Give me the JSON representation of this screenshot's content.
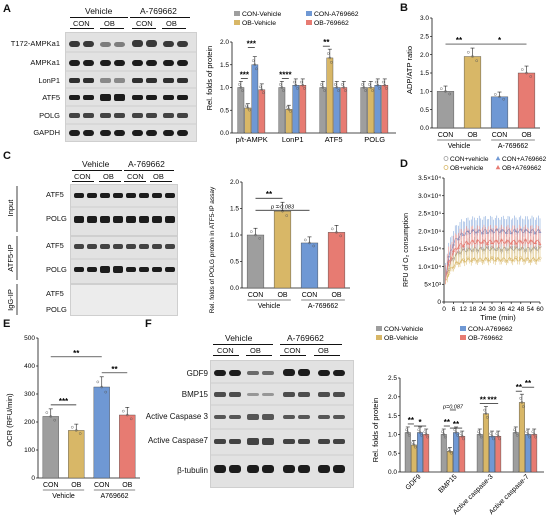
{
  "colors": {
    "con_vehicle": "#9e9e9e",
    "ob_vehicle": "#d8b767",
    "con_a769662": "#6f98d4",
    "ob_a769662": "#e77b72"
  },
  "panel_a": {
    "label": "A",
    "groups": [
      "Vehicle",
      "A-769662"
    ],
    "subgroups": [
      "CON",
      "OB",
      "CON",
      "OB"
    ],
    "blot_rows": [
      "T172-AMPKa1",
      "AMPKa1",
      "LonP1",
      "ATF5",
      "POLG",
      "GAPDH"
    ],
    "chart": {
      "ylabel": "Rel. folds of protein",
      "legend": [
        "CON-Vehicle",
        "CON-A769662",
        "OB-Vehicle",
        "OB-769662"
      ],
      "sig": [
        "***",
        "***",
        "****",
        "**"
      ]
    }
  },
  "panel_b": {
    "label": "B",
    "sig": [
      "**",
      "*"
    ],
    "subgroups": [
      "CON",
      "OB",
      "CON",
      "OB"
    ],
    "groups": [
      "Vehicle",
      "A-769662"
    ],
    "ylabel": "ADP/ATP ratio"
  },
  "panel_c": {
    "label": "C",
    "groups": [
      "Vehicle",
      "A-769662"
    ],
    "subgroups": [
      "CON",
      "OB",
      "CON",
      "OB"
    ],
    "sections": [
      "Input",
      "ATF5-IP",
      "IgG-IP"
    ],
    "blot_rows": [
      "ATF5",
      "POLG",
      "ATF5",
      "POLG",
      "ATF5",
      "POLG"
    ],
    "chart": {
      "ylabel": "Rel. folds of POLG protein in ATF5-IP assay",
      "ptext": "p = 0.083",
      "sig": [
        "**"
      ]
    }
  },
  "panel_d": {
    "label": "D",
    "legend": [
      "CON+vehicle",
      "OB+vehicle",
      "CON+A769662",
      "OB+A769662"
    ],
    "ylabel": "RFU of O₂ consumption",
    "xlabel": "Time (min)"
  },
  "panel_e": {
    "label": "E",
    "ylabel": "OCR (RFU/min)",
    "sig": [
      "***",
      "**",
      "**"
    ],
    "subgroups": [
      "CON",
      "OB",
      "CON",
      "OB"
    ],
    "groups": [
      "Vehicle",
      "A769662"
    ]
  },
  "panel_f": {
    "label": "F",
    "groups": [
      "Vehicle",
      "A-769662"
    ],
    "subgroups": [
      "CON",
      "OB",
      "CON",
      "OB"
    ],
    "blot_rows": [
      "GDF9",
      "BMP15",
      "Active Caspase 3",
      "Active Caspase7",
      "β-tubulin"
    ],
    "chart": {
      "ylabel": "Rel. folds of protein",
      "legend": [
        "CON-Vehicle",
        "CON-A769662",
        "OB-Vehicle",
        "OB-769662"
      ],
      "ptext": "p=0.087",
      "sig": [
        "**",
        "*",
        "**",
        "**",
        "**",
        "***",
        "**",
        "**"
      ]
    }
  },
  "chart_data": [
    {
      "type": "bar",
      "panel": "A",
      "categories": [
        "p/t-AMPK",
        "LonP1",
        "ATF5",
        "POLG"
      ],
      "ylim": [
        0,
        2.0
      ],
      "yticks": [
        0,
        0.5,
        1.0,
        1.5,
        2.0
      ],
      "series": [
        {
          "name": "CON-Vehicle",
          "values": [
            1.0,
            1.0,
            1.0,
            1.0
          ]
        },
        {
          "name": "OB-Vehicle",
          "values": [
            0.55,
            0.52,
            1.65,
            1.0
          ]
        },
        {
          "name": "CON-A769662",
          "values": [
            1.5,
            1.05,
            1.0,
            1.05
          ]
        },
        {
          "name": "OB-769662",
          "values": [
            0.95,
            1.05,
            1.0,
            1.05
          ]
        }
      ]
    },
    {
      "type": "bar",
      "panel": "B",
      "categories": [
        "CON",
        "OB",
        "CON",
        "OB"
      ],
      "ylim": [
        0,
        3.0
      ],
      "yticks": [
        0,
        0.5,
        1.0,
        1.5,
        2.0,
        2.5,
        3.0
      ],
      "values": [
        1.0,
        1.95,
        0.85,
        1.5
      ]
    },
    {
      "type": "bar",
      "panel": "C",
      "categories": [
        "CON",
        "OB",
        "CON",
        "OB"
      ],
      "ylim": [
        0,
        2.0
      ],
      "yticks": [
        0,
        0.5,
        1.0,
        1.5,
        2.0
      ],
      "values": [
        1.0,
        1.45,
        0.85,
        1.05
      ]
    },
    {
      "type": "line",
      "panel": "D",
      "xlim": [
        0,
        60
      ],
      "ylim": [
        0,
        35000
      ],
      "xticks": [
        0,
        6,
        12,
        18,
        24,
        30,
        36,
        42,
        48,
        54,
        60
      ],
      "yticks": [
        0,
        5000,
        10000,
        15000,
        20000,
        25000,
        30000,
        35000
      ],
      "ytick_labels": [
        "0",
        "5×10³",
        "1.0×10⁴",
        "1.5×10⁴",
        "2.0×10⁴",
        "2.5×10⁴",
        "3.0×10⁴",
        "3.5×10⁴"
      ],
      "series": [
        {
          "name": "CON+vehicle",
          "plateau": 15000
        },
        {
          "name": "OB+vehicle",
          "plateau": 12000
        },
        {
          "name": "CON+A769662",
          "plateau": 20000
        },
        {
          "name": "OB+A769662",
          "plateau": 17000
        }
      ]
    },
    {
      "type": "bar",
      "panel": "E",
      "categories": [
        "CON",
        "OB",
        "CON",
        "OB"
      ],
      "ylim": [
        0,
        500
      ],
      "yticks": [
        0,
        100,
        200,
        300,
        400,
        500
      ],
      "values": [
        220,
        170,
        325,
        225
      ]
    },
    {
      "type": "bar",
      "panel": "F",
      "categories": [
        "GDF9",
        "BMP15",
        "Active caspase-3",
        "Active caspase-7"
      ],
      "ylim": [
        0,
        2.5
      ],
      "yticks": [
        0,
        0.5,
        1.0,
        1.5,
        2.0,
        2.5
      ],
      "series": [
        {
          "name": "CON-Vehicle",
          "values": [
            1.05,
            1.0,
            1.0,
            1.05
          ]
        },
        {
          "name": "OB-Vehicle",
          "values": [
            0.72,
            0.55,
            1.55,
            1.85
          ]
        },
        {
          "name": "CON-A769662",
          "values": [
            1.05,
            1.05,
            0.95,
            1.0
          ]
        },
        {
          "name": "OB-769662",
          "values": [
            1.0,
            0.95,
            0.95,
            1.0
          ]
        }
      ]
    }
  ]
}
